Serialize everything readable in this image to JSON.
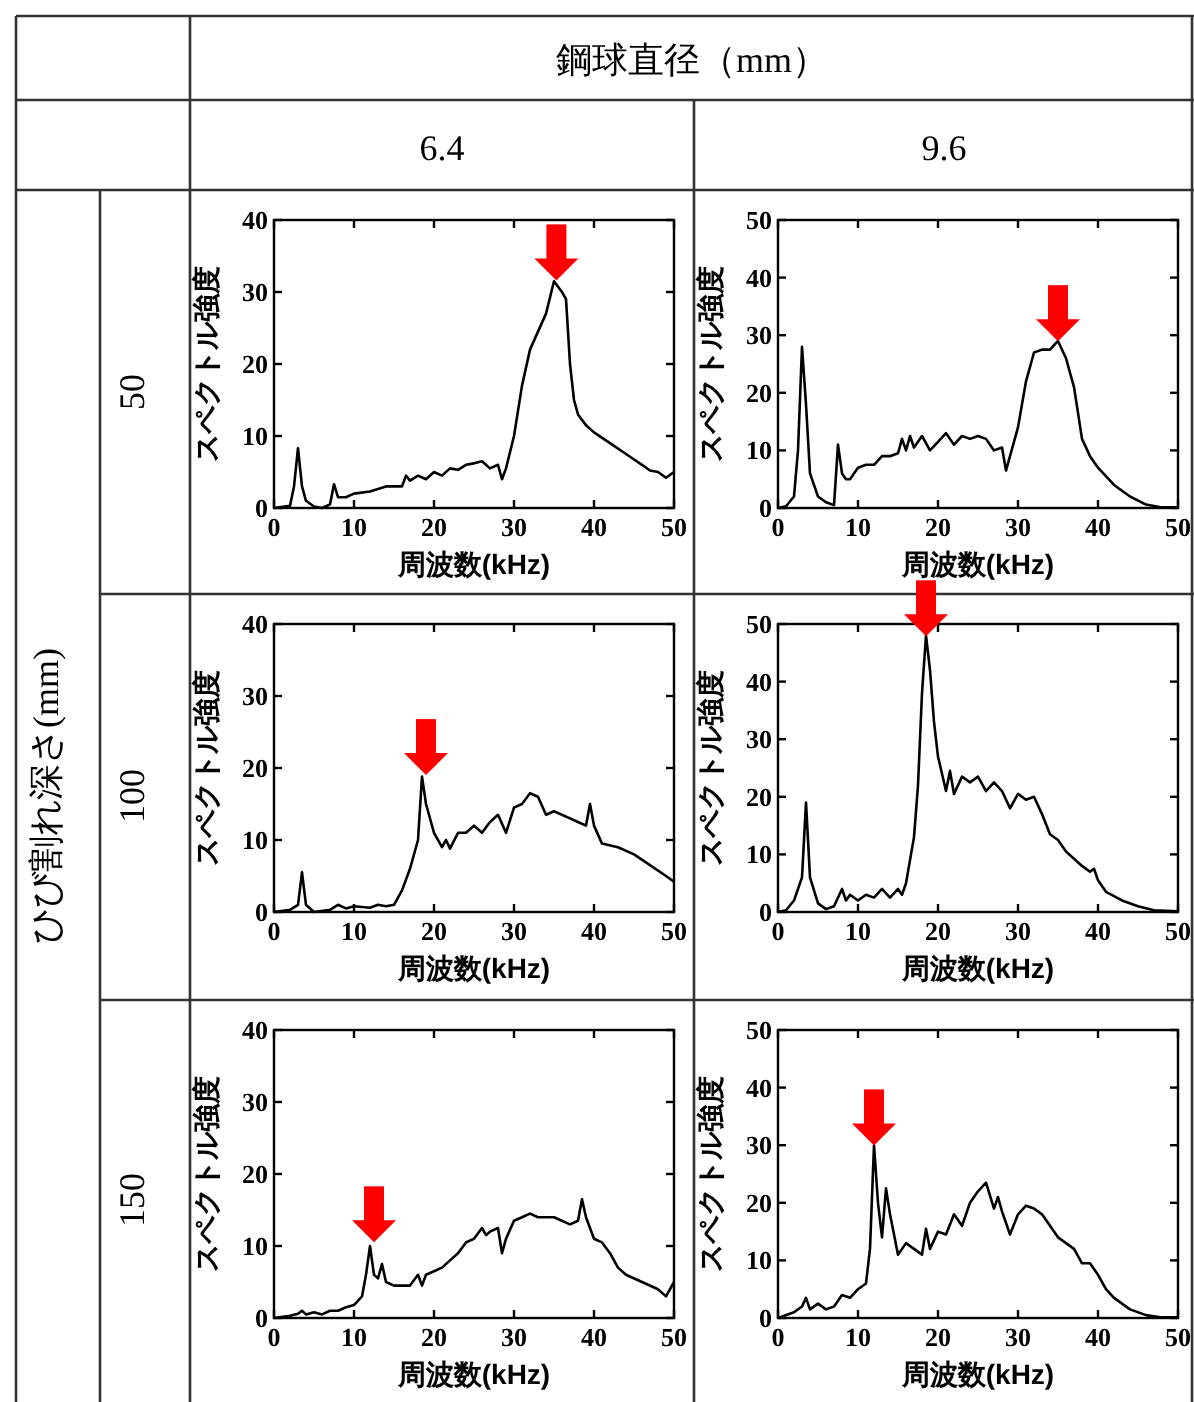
{
  "chart_data": [
    {
      "type": "line",
      "xlabel": "周波数(kHz)",
      "ylabel": "スペクトル強度",
      "xlim": [
        0,
        50
      ],
      "xticks": [
        0,
        10,
        20,
        30,
        40,
        50
      ],
      "ylim": [
        0,
        40
      ],
      "yticks": [
        0,
        10,
        20,
        30,
        40
      ],
      "annotations": [
        "鋼球直径（mm）",
        "6.4",
        "9.6",
        "ひび割れ深さ(mm)",
        "50",
        "100",
        "150"
      ],
      "series": [
        {
          "color": "#000000",
          "x": [
            0,
            2,
            2.5,
            3,
            3.5,
            4,
            5,
            6,
            7,
            7.5,
            8,
            9,
            10,
            12,
            14,
            16,
            16.5,
            17,
            18,
            19,
            20,
            21,
            22,
            23,
            24,
            25,
            26,
            27,
            28,
            28.5,
            29,
            30,
            31,
            32,
            33,
            34,
            35,
            36,
            36.5,
            37,
            37.5,
            38,
            39,
            40,
            42,
            44,
            46,
            47,
            48,
            49,
            50
          ],
          "values": [
            0,
            0.3,
            3,
            8.3,
            3,
            1,
            0.2,
            0,
            0.5,
            3.3,
            1.5,
            1.5,
            2,
            2.3,
            3,
            3,
            4.5,
            3.8,
            4.5,
            4,
            5,
            4.5,
            5.5,
            5.3,
            6,
            6.2,
            6.5,
            5.5,
            6,
            4,
            5.5,
            10,
            17,
            22,
            24.5,
            27,
            31.5,
            30,
            29,
            20,
            15,
            13,
            11.5,
            10.5,
            9,
            7.5,
            6,
            5.2,
            5,
            4.2,
            5
          ]
        },
        {
          "type": "scatter",
          "marker": "triangle",
          "color": "#ff0000",
          "x": [
            35.3
          ],
          "values": [
            33
          ]
        }
      ]
    },
    {
      "type": "line",
      "xlabel": "周波数(kHz)",
      "ylabel": "スペクトル強度",
      "xlim": [
        0,
        50
      ],
      "xticks": [
        0,
        10,
        20,
        30,
        40,
        50
      ],
      "ylim": [
        0,
        50
      ],
      "yticks": [
        0,
        10,
        20,
        30,
        40,
        50
      ],
      "series": [
        {
          "color": "#000000",
          "x": [
            0,
            1,
            2,
            2.5,
            3,
            3.5,
            4,
            5,
            6,
            7,
            7.5,
            8,
            8.5,
            9,
            10,
            11,
            12,
            13,
            14,
            15,
            15.5,
            16,
            16.5,
            17,
            18,
            19,
            20,
            21,
            22,
            23,
            24,
            25,
            26,
            27,
            28,
            28.5,
            29,
            30,
            31,
            32,
            33,
            34,
            35,
            36,
            37,
            38,
            39,
            40,
            42,
            44,
            46,
            48,
            50
          ],
          "values": [
            0,
            0.3,
            2,
            10,
            28,
            18,
            6,
            2,
            1,
            0.5,
            11,
            6,
            5,
            5,
            7,
            7.5,
            7.5,
            9,
            9,
            9.5,
            12,
            10,
            12.5,
            10.5,
            12.5,
            10,
            11.5,
            13,
            11,
            12.5,
            12,
            12.5,
            12,
            10,
            10.5,
            6.5,
            9,
            14,
            22,
            27,
            27.5,
            27.5,
            29,
            26,
            21,
            12,
            9,
            7,
            4,
            2,
            0.6,
            0.1,
            0.1
          ]
        },
        {
          "type": "scatter",
          "marker": "triangle",
          "color": "#ff0000",
          "x": [
            35
          ],
          "values": [
            30.7
          ]
        }
      ]
    },
    {
      "type": "line",
      "xlabel": "周波数(kHz)",
      "ylabel": "スペクトル強度",
      "xlim": [
        0,
        50
      ],
      "xticks": [
        0,
        10,
        20,
        30,
        40,
        50
      ],
      "ylim": [
        0,
        40
      ],
      "yticks": [
        0,
        10,
        20,
        30,
        40
      ],
      "series": [
        {
          "color": "#000000",
          "x": [
            0,
            2,
            3,
            3.5,
            4,
            5,
            7,
            8,
            9,
            10,
            12,
            13,
            14,
            15,
            16,
            17,
            18,
            18.5,
            19,
            20,
            21,
            21.5,
            22,
            23,
            24,
            25,
            26,
            27,
            28,
            29,
            30,
            31,
            32,
            33,
            34,
            35,
            37,
            38,
            39,
            39.5,
            40,
            41,
            43,
            45,
            47,
            49,
            50
          ],
          "values": [
            0,
            0.3,
            1,
            5.5,
            1,
            0,
            0.3,
            1,
            0.5,
            0.8,
            0.6,
            1,
            0.8,
            1,
            3,
            6,
            10,
            18.8,
            15,
            11,
            9,
            10,
            8.8,
            11,
            11,
            12,
            11,
            12.5,
            13.5,
            11,
            14.5,
            15,
            16.5,
            16,
            13.5,
            14,
            13,
            12.5,
            12,
            15,
            12,
            9.5,
            9,
            8,
            6.5,
            5,
            4.2
          ]
        },
        {
          "type": "scatter",
          "marker": "triangle",
          "color": "#ff0000",
          "x": [
            19
          ],
          "values": [
            20.4
          ]
        }
      ]
    },
    {
      "type": "line",
      "xlabel": "周波数(kHz)",
      "ylabel": "スペクトル強度",
      "xlim": [
        0,
        50
      ],
      "xticks": [
        0,
        10,
        20,
        30,
        40,
        50
      ],
      "ylim": [
        0,
        50
      ],
      "yticks": [
        0,
        10,
        20,
        30,
        40,
        50
      ],
      "series": [
        {
          "color": "#000000",
          "x": [
            0,
            1,
            2,
            3,
            3.5,
            4,
            5,
            6,
            7,
            8,
            8.5,
            9,
            10,
            11,
            12,
            13,
            14,
            15,
            15.5,
            16,
            17,
            17.5,
            18,
            18.5,
            19,
            19.5,
            20,
            21,
            21.5,
            22,
            23,
            24,
            25,
            26,
            27,
            28,
            29,
            30,
            31,
            32,
            33,
            34,
            35,
            36,
            38,
            39,
            39.5,
            40,
            41,
            43,
            45,
            47,
            50
          ],
          "values": [
            0,
            0.3,
            2,
            6,
            19,
            6,
            1.5,
            0.5,
            1,
            4,
            2,
            3,
            2,
            3,
            2.5,
            4,
            2.5,
            4,
            3,
            5,
            13,
            22,
            38,
            48,
            42,
            33,
            27,
            21,
            24.5,
            20.5,
            23.5,
            22.5,
            23.5,
            21,
            22.5,
            21,
            18,
            20.5,
            19.5,
            20,
            17,
            13.5,
            12.5,
            10.5,
            8,
            7,
            7.5,
            5.5,
            3.5,
            2,
            1,
            0.3,
            0.1
          ]
        },
        {
          "type": "scatter",
          "marker": "triangle",
          "color": "#ff0000",
          "x": [
            18.5
          ],
          "values": [
            49.6
          ]
        }
      ]
    },
    {
      "type": "line",
      "xlabel": "周波数(kHz)",
      "ylabel": "スペクトル強度",
      "xlim": [
        0,
        50
      ],
      "xticks": [
        0,
        10,
        20,
        30,
        40,
        50
      ],
      "ylim": [
        0,
        40
      ],
      "yticks": [
        0,
        10,
        20,
        30,
        40
      ],
      "series": [
        {
          "color": "#000000",
          "x": [
            0,
            2,
            3,
            3.5,
            4,
            5,
            6,
            7,
            8,
            9,
            10,
            11,
            11.5,
            12,
            12.5,
            13,
            13.5,
            14,
            15,
            16,
            17,
            18,
            18.5,
            19,
            20,
            21,
            22,
            23,
            24,
            25,
            26,
            26.5,
            27,
            28,
            28.5,
            29,
            30,
            31,
            32,
            33,
            35,
            37,
            38,
            38.5,
            39,
            40,
            41,
            42,
            43,
            44,
            46,
            48,
            49,
            50
          ],
          "values": [
            0,
            0.3,
            0.6,
            1,
            0.5,
            0.8,
            0.5,
            1,
            1,
            1.5,
            1.8,
            3,
            6,
            10,
            6,
            5.5,
            7.5,
            5,
            4.5,
            4.5,
            4.5,
            6,
            4.5,
            6,
            6.5,
            7,
            8,
            9,
            10.5,
            11,
            12.5,
            11.5,
            12,
            12.5,
            9,
            11,
            13.5,
            14,
            14.5,
            14,
            14,
            13,
            13.5,
            16.5,
            14,
            11,
            10.5,
            9,
            7,
            6,
            5,
            4,
            3,
            5
          ]
        },
        {
          "type": "scatter",
          "marker": "triangle",
          "color": "#ff0000",
          "x": [
            12.5
          ],
          "values": [
            11.9
          ]
        }
      ]
    },
    {
      "type": "line",
      "xlabel": "周波数(kHz)",
      "ylabel": "スペクトル強度",
      "xlim": [
        0,
        50
      ],
      "xticks": [
        0,
        10,
        20,
        30,
        40,
        50
      ],
      "ylim": [
        0,
        50
      ],
      "yticks": [
        0,
        10,
        20,
        30,
        40,
        50
      ],
      "series": [
        {
          "color": "#000000",
          "x": [
            0,
            2,
            3,
            3.5,
            4,
            5,
            6,
            7,
            8,
            9,
            10,
            11,
            11.5,
            12,
            12.5,
            13,
            13.5,
            14,
            15,
            16,
            17,
            18,
            18.5,
            19,
            20,
            21,
            22,
            23,
            24,
            25,
            26,
            27,
            27.5,
            28,
            29,
            30,
            31,
            32,
            33,
            34,
            35,
            37,
            38,
            39,
            40,
            41,
            42,
            44,
            46,
            48,
            50
          ],
          "values": [
            0,
            1,
            2,
            3.5,
            1.5,
            2.5,
            1.5,
            2,
            4,
            3.5,
            5,
            6,
            12,
            30,
            20,
            14,
            22.5,
            18,
            11,
            13,
            12,
            11,
            15.5,
            12,
            15,
            14.5,
            18,
            16,
            20,
            22,
            23.5,
            19,
            21,
            18.5,
            14.5,
            18,
            19.5,
            19,
            18,
            16,
            14,
            12,
            9.5,
            9.5,
            7.5,
            5,
            3.5,
            1.5,
            0.5,
            0.1,
            0.1
          ]
        },
        {
          "type": "scatter",
          "marker": "triangle",
          "color": "#ff0000",
          "x": [
            12
          ],
          "values": [
            31.7
          ]
        }
      ]
    }
  ]
}
